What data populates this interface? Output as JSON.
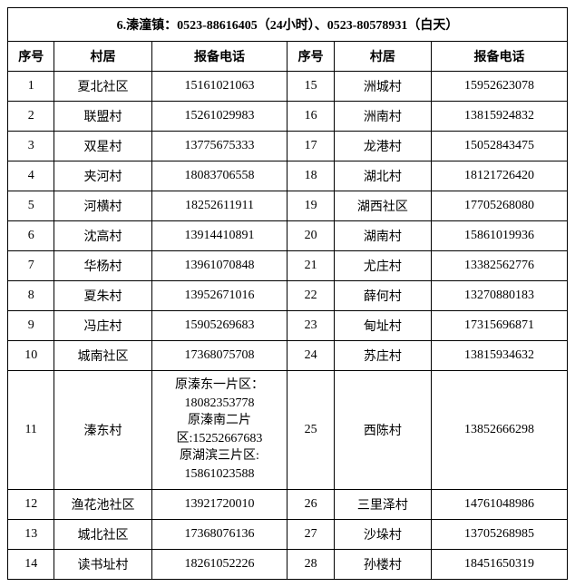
{
  "title": "6.溱潼镇：0523-88616405（24小时）、0523-80578931（白天）",
  "columns": {
    "seq": "序号",
    "village": "村居",
    "phone": "报备电话"
  },
  "left_rows": [
    {
      "seq": "1",
      "village": "夏北社区",
      "phone": "15161021063"
    },
    {
      "seq": "2",
      "village": "联盟村",
      "phone": "15261029983"
    },
    {
      "seq": "3",
      "village": "双星村",
      "phone": "13775675333"
    },
    {
      "seq": "4",
      "village": "夹河村",
      "phone": "18083706558"
    },
    {
      "seq": "5",
      "village": "河横村",
      "phone": "18252611911"
    },
    {
      "seq": "6",
      "village": "沈高村",
      "phone": "13914410891"
    },
    {
      "seq": "7",
      "village": "华杨村",
      "phone": "13961070848"
    },
    {
      "seq": "8",
      "village": "夏朱村",
      "phone": "13952671016"
    },
    {
      "seq": "9",
      "village": "冯庄村",
      "phone": "15905269683"
    },
    {
      "seq": "10",
      "village": "城南社区",
      "phone": "17368075708"
    },
    {
      "seq": "11",
      "village": "溱东村",
      "phone": "原溱东一片区：\n18082353778\n原溱南二片\n区:15252667683\n原湖滨三片区:\n15861023588"
    },
    {
      "seq": "12",
      "village": "渔花池社区",
      "phone": "13921720010"
    },
    {
      "seq": "13",
      "village": "城北社区",
      "phone": "17368076136"
    },
    {
      "seq": "14",
      "village": "读书址村",
      "phone": "18261052226"
    }
  ],
  "right_rows": [
    {
      "seq": "15",
      "village": "洲城村",
      "phone": "15952623078"
    },
    {
      "seq": "16",
      "village": "洲南村",
      "phone": "13815924832"
    },
    {
      "seq": "17",
      "village": "龙港村",
      "phone": "15052843475"
    },
    {
      "seq": "18",
      "village": "湖北村",
      "phone": "18121726420"
    },
    {
      "seq": "19",
      "village": "湖西社区",
      "phone": "17705268080"
    },
    {
      "seq": "20",
      "village": "湖南村",
      "phone": "15861019936"
    },
    {
      "seq": "21",
      "village": "尤庄村",
      "phone": "13382562776"
    },
    {
      "seq": "22",
      "village": "薛何村",
      "phone": "13270880183"
    },
    {
      "seq": "23",
      "village": "甸址村",
      "phone": "17315696871"
    },
    {
      "seq": "24",
      "village": "苏庄村",
      "phone": "13815934632"
    },
    {
      "seq": "25",
      "village": "西陈村",
      "phone": "13852666298"
    },
    {
      "seq": "26",
      "village": "三里泽村",
      "phone": "14761048986"
    },
    {
      "seq": "27",
      "village": "沙垛村",
      "phone": "13705268985"
    },
    {
      "seq": "28",
      "village": "孙楼村",
      "phone": "18451650319"
    }
  ],
  "text_color": "#000000",
  "border_color": "#000000",
  "background_color": "#ffffff",
  "font_size": 14,
  "title_fontsize": 14
}
